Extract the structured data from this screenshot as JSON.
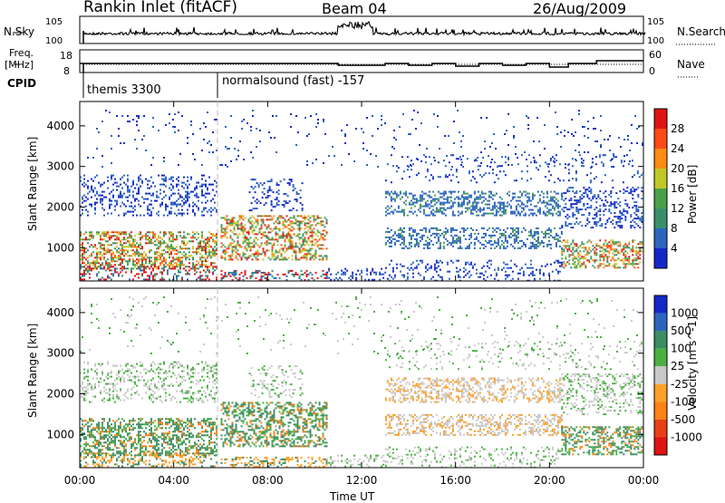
{
  "header": {
    "title": "Rankin Inlet (fitACF)",
    "beam": "Beam 04",
    "date": "26/Aug/2009"
  },
  "top_panel": {
    "left_label": "N.Sky",
    "left_ticks": [
      "10^5",
      "10^0"
    ],
    "right_label": "N.Search",
    "right_ticks": [
      "10^5",
      "10^0"
    ]
  },
  "freq_panel": {
    "left_label_1": "Freq.",
    "left_label_2": "[MHz]",
    "left_ticks": [
      "18",
      "8"
    ],
    "right_label": "Nave",
    "right_ticks": [
      "60",
      "0"
    ]
  },
  "cpid": {
    "label": "CPID",
    "modes": [
      "themis 3300",
      "normalsound (fast) -157"
    ]
  },
  "chart_data": [
    {
      "type": "heatmap",
      "title": "Power",
      "ylabel": "Slant Range [km]",
      "xlabel": "Time UT",
      "x_ticks": [
        "00:00",
        "04:00",
        "08:00",
        "12:00",
        "16:00",
        "20:00",
        "00:00"
      ],
      "y_ticks": [
        1000,
        2000,
        3000,
        4000
      ],
      "ylim": [
        180,
        4600
      ],
      "colorbar": {
        "label": "Power [dB]",
        "ticks": [
          "28",
          "24",
          "20",
          "16",
          "12",
          "8",
          "4"
        ],
        "colors": [
          "#1428c8",
          "#2c64c0",
          "#38906a",
          "#4aa04a",
          "#c0c828",
          "#ff8c14",
          "#ff4a14",
          "#e01414"
        ]
      }
    },
    {
      "type": "heatmap",
      "title": "Velocity",
      "ylabel": "Slant Range [km]",
      "xlabel": "Time UT",
      "x_ticks": [
        "00:00",
        "04:00",
        "08:00",
        "12:00",
        "16:00",
        "20:00",
        "00:00"
      ],
      "y_ticks": [
        1000,
        2000,
        3000,
        4000
      ],
      "ylim": [
        180,
        4600
      ],
      "colorbar": {
        "label": "Velocity [m s^-1]",
        "ticks": [
          "1000",
          "500",
          "100",
          "25",
          "-25",
          "-100",
          "-500",
          "-1000"
        ],
        "colors": [
          "#1428c8",
          "#2c64c0",
          "#3c8c64",
          "#4ab040",
          "#c8c8c8",
          "#ffa028",
          "#ff8214",
          "#e84014",
          "#e01414"
        ]
      }
    }
  ],
  "x_axis_label": "Time UT"
}
